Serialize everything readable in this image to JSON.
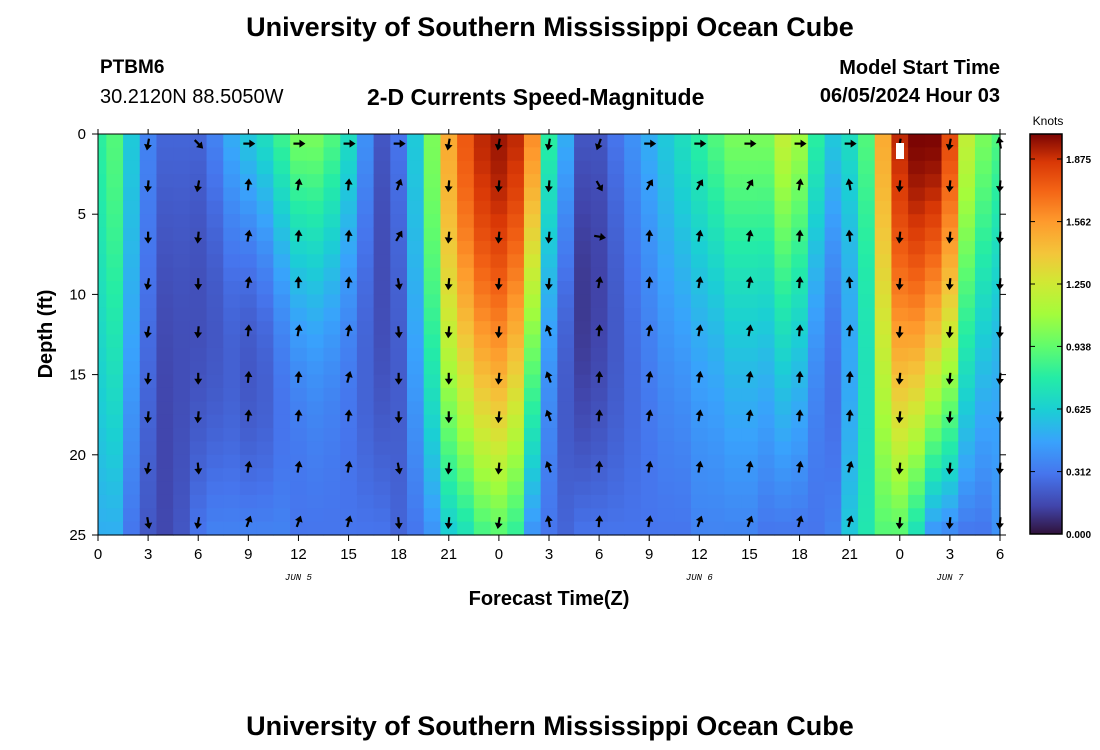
{
  "header": {
    "main_title": "University of Southern Mississippi Ocean Cube",
    "station": "PTBM6",
    "coords": "30.2120N  88.5050W",
    "plot_title": "2-D Currents Speed-Magnitude",
    "start_label": "Model Start Time",
    "start_value": "06/05/2024 Hour 03"
  },
  "footer": {
    "title": "University of Southern Mississippi Ocean Cube"
  },
  "chart_data": {
    "type": "heatmap",
    "title": "2-D Currents Speed-Magnitude",
    "xlabel": "Forecast Time(Z)",
    "ylabel": "Depth (ft)",
    "x_range": [
      0,
      54
    ],
    "y_range": [
      0,
      25
    ],
    "x_ticks": [
      0,
      3,
      6,
      9,
      12,
      15,
      18,
      21,
      24,
      27,
      30,
      33,
      36,
      39,
      42,
      45,
      48,
      51,
      54
    ],
    "x_tick_labels": [
      "0",
      "3",
      "6",
      "9",
      "12",
      "15",
      "18",
      "21",
      "0",
      "3",
      "6",
      "9",
      "12",
      "15",
      "18",
      "21",
      "0",
      "3",
      "6"
    ],
    "y_ticks": [
      0,
      5,
      10,
      15,
      20,
      25
    ],
    "y_tick_labels": [
      "0",
      "5",
      "10",
      "15",
      "20",
      "25"
    ],
    "date_labels": [
      {
        "text": "JUN 5",
        "x": 12
      },
      {
        "text": "JUN 6",
        "x": 36
      },
      {
        "text": "JUN 7",
        "x": 51
      }
    ],
    "colorbar": {
      "label": "Knots",
      "range": [
        0,
        2.0
      ],
      "ticks": [
        0.0,
        0.312,
        0.625,
        0.938,
        1.25,
        1.562,
        1.875
      ],
      "tick_labels": [
        "0.000",
        "0.312",
        "0.625",
        "0.938",
        "1.250",
        "1.562",
        "1.875"
      ]
    },
    "speed_profile": {
      "hours": [
        0,
        1,
        2,
        3,
        4,
        5,
        6,
        7,
        8,
        9,
        10,
        11,
        12,
        13,
        14,
        15,
        16,
        17,
        18,
        19,
        20,
        21,
        22,
        23,
        24,
        25,
        26,
        27,
        28,
        29,
        30,
        31,
        32,
        33,
        34,
        35,
        36,
        37,
        38,
        39,
        40,
        41,
        42,
        43,
        44,
        45,
        46,
        47,
        48,
        49,
        50,
        51,
        52,
        53,
        54
      ],
      "surface": [
        0.8,
        0.9,
        0.6,
        0.35,
        0.25,
        0.25,
        0.25,
        0.35,
        0.5,
        0.6,
        0.7,
        0.85,
        1.0,
        1.0,
        0.9,
        0.7,
        0.4,
        0.2,
        0.3,
        0.6,
        1.0,
        1.5,
        1.75,
        1.9,
        1.95,
        1.9,
        1.6,
        0.8,
        0.5,
        0.2,
        0.2,
        0.3,
        0.4,
        0.5,
        0.6,
        0.7,
        0.8,
        0.9,
        1.0,
        1.0,
        1.0,
        1.2,
        1.1,
        0.8,
        0.6,
        0.7,
        0.9,
        1.5,
        1.9,
        2.0,
        2.0,
        1.8,
        1.2,
        1.0,
        0.9
      ],
      "bottom": [
        0.5,
        0.5,
        0.3,
        0.2,
        0.15,
        0.2,
        0.3,
        0.35,
        0.35,
        0.35,
        0.35,
        0.35,
        0.3,
        0.3,
        0.3,
        0.3,
        0.3,
        0.3,
        0.25,
        0.3,
        0.4,
        0.6,
        0.7,
        0.85,
        0.9,
        0.8,
        0.4,
        0.3,
        0.25,
        0.3,
        0.3,
        0.3,
        0.3,
        0.3,
        0.3,
        0.3,
        0.35,
        0.35,
        0.35,
        0.35,
        0.3,
        0.3,
        0.3,
        0.3,
        0.35,
        0.6,
        0.75,
        0.9,
        0.9,
        0.7,
        0.4,
        0.35,
        0.3,
        0.3,
        0.4
      ],
      "taper": [
        0.05,
        0.05,
        0.05,
        0.05,
        0.1,
        0.1,
        0.15,
        0.25,
        0.35,
        0.5,
        0.55,
        0.55,
        0.55,
        0.5,
        0.45,
        0.35,
        0.2,
        0.1,
        0.1,
        0.05,
        0.0,
        0.0,
        0.0,
        0.0,
        0.0,
        0.1,
        0.3,
        0.3,
        0.3,
        0.2,
        0.15,
        0.15,
        0.15,
        0.15,
        0.15,
        0.2,
        0.25,
        0.3,
        0.3,
        0.3,
        0.3,
        0.35,
        0.35,
        0.35,
        0.35,
        0.3,
        0.2,
        0.1,
        0.05,
        0.05,
        0.1,
        0.15,
        0.2,
        0.25,
        0.3
      ]
    },
    "arrow_depths": [
      0.6,
      3.2,
      6.4,
      9.3,
      12.3,
      15.2,
      17.6,
      20.8,
      24.2
    ],
    "arrow_columns": [
      {
        "hour": 3,
        "angles": [
          100,
          95,
          90,
          100,
          100,
          95,
          95,
          100,
          80
        ]
      },
      {
        "hour": 6,
        "angles": [
          45,
          100,
          95,
          90,
          95,
          90,
          95,
          85,
          100
        ]
      },
      {
        "hour": 9,
        "angles": [
          0,
          -85,
          -80,
          -80,
          -85,
          -85,
          -85,
          -80,
          -70
        ]
      },
      {
        "hour": 12,
        "angles": [
          0,
          -80,
          -85,
          -90,
          -80,
          -85,
          -85,
          -80,
          -70
        ]
      },
      {
        "hour": 15,
        "angles": [
          0,
          -85,
          -85,
          -85,
          -80,
          -75,
          -85,
          -80,
          -75
        ]
      },
      {
        "hour": 18,
        "angles": [
          0,
          -70,
          -60,
          80,
          85,
          90,
          90,
          80,
          85
        ]
      },
      {
        "hour": 21,
        "angles": [
          100,
          95,
          95,
          95,
          95,
          90,
          90,
          95,
          95
        ]
      },
      {
        "hour": 24,
        "angles": [
          100,
          95,
          95,
          95,
          95,
          95,
          95,
          95,
          100
        ]
      },
      {
        "hour": 27,
        "angles": [
          100,
          95,
          95,
          95,
          -110,
          -110,
          -110,
          -110,
          -100
        ]
      },
      {
        "hour": 30,
        "angles": [
          110,
          60,
          10,
          -80,
          -85,
          -85,
          -85,
          -85,
          -85
        ]
      },
      {
        "hour": 33,
        "angles": [
          0,
          -60,
          -85,
          -85,
          -80,
          -80,
          -80,
          -80,
          -80
        ]
      },
      {
        "hour": 36,
        "angles": [
          0,
          -60,
          -80,
          -80,
          -80,
          -80,
          -80,
          -80,
          -70
        ]
      },
      {
        "hour": 39,
        "angles": [
          0,
          -60,
          -80,
          -80,
          -80,
          -80,
          -80,
          -80,
          -70
        ]
      },
      {
        "hour": 42,
        "angles": [
          0,
          -80,
          -85,
          -85,
          -85,
          -85,
          -85,
          -80,
          -75
        ]
      },
      {
        "hour": 45,
        "angles": [
          0,
          -100,
          -95,
          -95,
          -85,
          -85,
          -85,
          -75,
          -75
        ]
      },
      {
        "hour": 48,
        "angles": [
          100,
          95,
          95,
          95,
          95,
          95,
          95,
          95,
          95
        ]
      },
      {
        "hour": 51,
        "angles": [
          100,
          95,
          95,
          95,
          95,
          95,
          95,
          95,
          95
        ]
      },
      {
        "hour": 54,
        "angles": [
          -100,
          95,
          95,
          95,
          95,
          95,
          95,
          95,
          95
        ]
      }
    ]
  }
}
